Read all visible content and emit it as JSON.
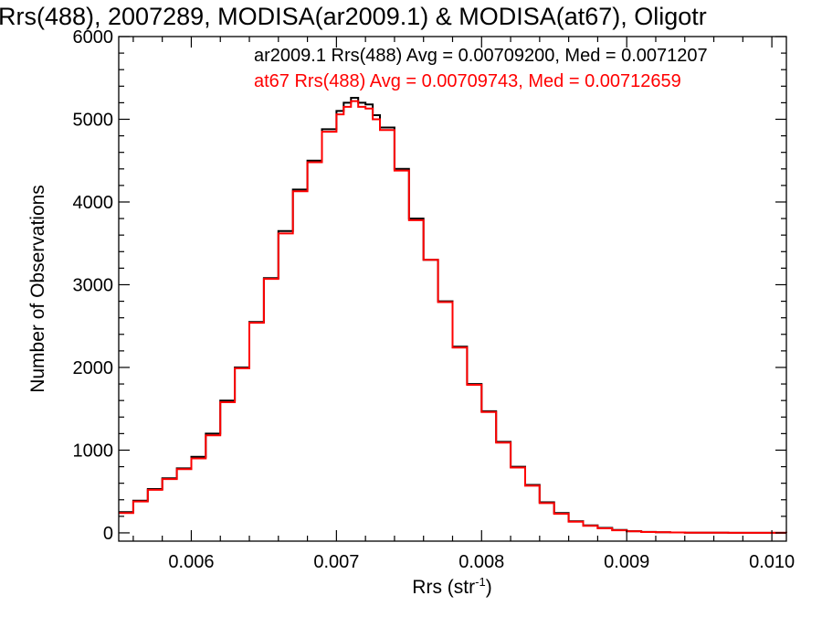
{
  "chart_data": {
    "type": "line",
    "title": "Rrs(488), 2007289, MODISA(ar2009.1) & MODISA(at67), Oligotr",
    "xlabel": "Rrs (str",
    "xlabel_sup": "-1",
    "xlabel_end": ")",
    "ylabel": "Number of Observations",
    "xlim": [
      0.0055,
      0.0101
    ],
    "ylim": [
      -100,
      6000
    ],
    "x_ticks": [
      0.006,
      0.007,
      0.008,
      0.009,
      0.01
    ],
    "x_tick_labels": [
      "0.006",
      "0.007",
      "0.008",
      "0.009",
      "0.010"
    ],
    "y_ticks": [
      0,
      1000,
      2000,
      3000,
      4000,
      5000,
      6000
    ],
    "y_tick_labels": [
      "0",
      "1000",
      "2000",
      "3000",
      "4000",
      "5000",
      "6000"
    ],
    "grid": false,
    "legend_position": "top-right",
    "series": [
      {
        "name": "ar2009.1",
        "color": "#000000",
        "legend_text": "ar2009.1 Rrs(488) Avg = 0.00709200, Med = 0.0071207",
        "x": [
          0.0055,
          0.0056,
          0.0057,
          0.0058,
          0.0059,
          0.006,
          0.0061,
          0.0062,
          0.0063,
          0.0064,
          0.0065,
          0.0066,
          0.0067,
          0.0068,
          0.0069,
          0.007,
          0.00705,
          0.0071,
          0.00715,
          0.0072,
          0.00725,
          0.0073,
          0.0074,
          0.0075,
          0.0076,
          0.0077,
          0.0078,
          0.0079,
          0.008,
          0.0081,
          0.0082,
          0.0083,
          0.0084,
          0.0085,
          0.0086,
          0.0087,
          0.0088,
          0.0089,
          0.009,
          0.0091,
          0.0092,
          0.0093,
          0.0094,
          0.0095,
          0.0096,
          0.0097,
          0.0098,
          0.0099,
          0.01,
          0.0101
        ],
        "y": [
          250,
          390,
          530,
          660,
          780,
          920,
          1200,
          1600,
          2000,
          2550,
          3080,
          3650,
          4150,
          4500,
          4880,
          5100,
          5200,
          5260,
          5200,
          5180,
          5050,
          4900,
          4400,
          3800,
          3300,
          2800,
          2250,
          1800,
          1470,
          1100,
          800,
          580,
          370,
          240,
          140,
          90,
          60,
          35,
          20,
          12,
          8,
          5,
          3,
          2,
          2,
          1,
          1,
          1,
          1,
          0
        ]
      },
      {
        "name": "at67",
        "color": "#ff0000",
        "legend_text": "at67 Rrs(488) Avg = 0.00709743, Med = 0.00712659",
        "x": [
          0.0055,
          0.0056,
          0.0057,
          0.0058,
          0.0059,
          0.006,
          0.0061,
          0.0062,
          0.0063,
          0.0064,
          0.0065,
          0.0066,
          0.0067,
          0.0068,
          0.0069,
          0.007,
          0.00705,
          0.0071,
          0.00715,
          0.0072,
          0.00725,
          0.0073,
          0.0074,
          0.0075,
          0.0076,
          0.0077,
          0.0078,
          0.0079,
          0.008,
          0.0081,
          0.0082,
          0.0083,
          0.0084,
          0.0085,
          0.0086,
          0.0087,
          0.0088,
          0.0089,
          0.009,
          0.0091,
          0.0092,
          0.0093,
          0.0094,
          0.0095,
          0.0096,
          0.0097,
          0.0098,
          0.0099,
          0.01,
          0.0101
        ],
        "y": [
          240,
          380,
          520,
          650,
          770,
          900,
          1180,
          1580,
          1990,
          2540,
          3070,
          3620,
          4130,
          4480,
          4850,
          5060,
          5150,
          5220,
          5150,
          5130,
          5000,
          4870,
          4380,
          3780,
          3300,
          2790,
          2240,
          1790,
          1460,
          1090,
          790,
          570,
          360,
          230,
          135,
          85,
          55,
          32,
          18,
          10,
          7,
          5,
          3,
          2,
          2,
          1,
          1,
          1,
          1,
          0
        ]
      }
    ]
  }
}
